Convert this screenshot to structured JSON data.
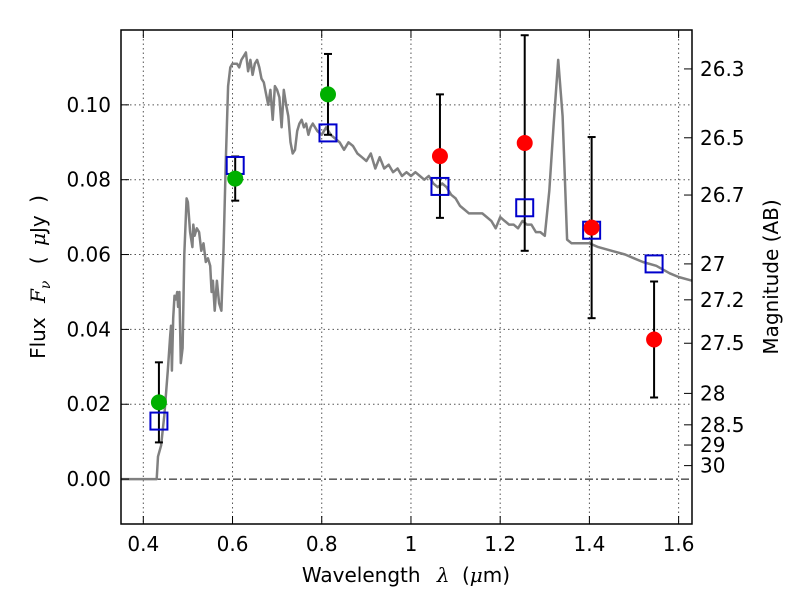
{
  "chart_data": {
    "type": "scatter",
    "xlabel_text": "Wavelength",
    "xlabel_symbol": "λ",
    "xlabel_unit_open": "(",
    "xlabel_unit_mu": "μ",
    "xlabel_unit_rest": "m)",
    "ylabel_text": "Flux",
    "ylabel_symbol": "F",
    "ylabel_subscript": "ν",
    "ylabel_unit_open": "(",
    "ylabel_unit_mu": "μ",
    "ylabel_unit_rest": "Jy",
    "ylabel_unit_close": ")",
    "y2label": "Magnitude (AB)",
    "xlim": [
      0.35,
      1.63
    ],
    "ylim": [
      -0.012,
      0.12
    ],
    "grid": true,
    "x_ticks": [
      0.4,
      0.6,
      0.8,
      1.0,
      1.2,
      1.4,
      1.6
    ],
    "x_tick_labels": [
      "0.4",
      "0.6",
      "0.8",
      "1",
      "1.2",
      "1.4",
      "1.6"
    ],
    "y_ticks": [
      0.0,
      0.02,
      0.04,
      0.06,
      0.08,
      0.1
    ],
    "y_tick_labels": [
      "0.00",
      "0.02",
      "0.04",
      "0.06",
      "0.08",
      "0.10"
    ],
    "y2_ticks": [
      {
        "label": "26.3",
        "flux": 0.1096
      },
      {
        "label": "26.5",
        "flux": 0.0912
      },
      {
        "label": "26.7",
        "flux": 0.0759
      },
      {
        "label": "27",
        "flux": 0.0575
      },
      {
        "label": "27.2",
        "flux": 0.0479
      },
      {
        "label": "27.5",
        "flux": 0.0363
      },
      {
        "label": "28",
        "flux": 0.0229
      },
      {
        "label": "28.5",
        "flux": 0.0145
      },
      {
        "label": "29",
        "flux": 0.0091
      },
      {
        "label": "30",
        "flux": 0.0036
      }
    ],
    "colors": {
      "model": "#808080",
      "photometry_green": "#00b000",
      "photometry_red": "#ff0000",
      "model_box": "#0000cc",
      "errorbar": "#000000",
      "grid": "#555555"
    },
    "model_spectrum": [
      [
        0.35,
        0.0
      ],
      [
        0.43,
        0.0
      ],
      [
        0.433,
        0.006
      ],
      [
        0.44,
        0.009
      ],
      [
        0.447,
        0.017
      ],
      [
        0.455,
        0.029
      ],
      [
        0.46,
        0.038
      ],
      [
        0.462,
        0.041
      ],
      [
        0.464,
        0.029
      ],
      [
        0.467,
        0.043
      ],
      [
        0.47,
        0.049
      ],
      [
        0.473,
        0.048
      ],
      [
        0.476,
        0.05
      ],
      [
        0.478,
        0.046
      ],
      [
        0.481,
        0.05
      ],
      [
        0.484,
        0.031
      ],
      [
        0.488,
        0.035
      ],
      [
        0.492,
        0.06
      ],
      [
        0.497,
        0.075
      ],
      [
        0.5,
        0.074
      ],
      [
        0.505,
        0.066
      ],
      [
        0.51,
        0.062
      ],
      [
        0.512,
        0.068
      ],
      [
        0.515,
        0.065
      ],
      [
        0.52,
        0.067
      ],
      [
        0.525,
        0.066
      ],
      [
        0.53,
        0.061
      ],
      [
        0.535,
        0.063
      ],
      [
        0.54,
        0.058
      ],
      [
        0.545,
        0.059
      ],
      [
        0.55,
        0.057
      ],
      [
        0.553,
        0.05
      ],
      [
        0.556,
        0.053
      ],
      [
        0.56,
        0.045
      ],
      [
        0.565,
        0.053
      ],
      [
        0.57,
        0.047
      ],
      [
        0.575,
        0.045
      ],
      [
        0.58,
        0.062
      ],
      [
        0.585,
        0.085
      ],
      [
        0.59,
        0.105
      ],
      [
        0.595,
        0.11
      ],
      [
        0.6,
        0.111
      ],
      [
        0.605,
        0.111
      ],
      [
        0.61,
        0.111
      ],
      [
        0.615,
        0.11
      ],
      [
        0.62,
        0.112
      ],
      [
        0.625,
        0.113
      ],
      [
        0.63,
        0.114
      ],
      [
        0.635,
        0.109
      ],
      [
        0.64,
        0.112
      ],
      [
        0.645,
        0.108
      ],
      [
        0.65,
        0.111
      ],
      [
        0.655,
        0.112
      ],
      [
        0.66,
        0.11
      ],
      [
        0.665,
        0.107
      ],
      [
        0.67,
        0.106
      ],
      [
        0.675,
        0.103
      ],
      [
        0.68,
        0.1
      ],
      [
        0.685,
        0.104
      ],
      [
        0.69,
        0.096
      ],
      [
        0.695,
        0.105
      ],
      [
        0.7,
        0.104
      ],
      [
        0.705,
        0.102
      ],
      [
        0.71,
        0.094
      ],
      [
        0.715,
        0.104
      ],
      [
        0.72,
        0.1
      ],
      [
        0.725,
        0.097
      ],
      [
        0.73,
        0.09
      ],
      [
        0.735,
        0.087
      ],
      [
        0.74,
        0.088
      ],
      [
        0.745,
        0.093
      ],
      [
        0.75,
        0.095
      ],
      [
        0.755,
        0.096
      ],
      [
        0.76,
        0.094
      ],
      [
        0.765,
        0.095
      ],
      [
        0.77,
        0.092
      ],
      [
        0.775,
        0.094
      ],
      [
        0.78,
        0.095
      ],
      [
        0.79,
        0.093
      ],
      [
        0.8,
        0.092
      ],
      [
        0.81,
        0.094
      ],
      [
        0.82,
        0.092
      ],
      [
        0.83,
        0.091
      ],
      [
        0.84,
        0.09
      ],
      [
        0.85,
        0.088
      ],
      [
        0.86,
        0.09
      ],
      [
        0.87,
        0.089
      ],
      [
        0.88,
        0.087
      ],
      [
        0.89,
        0.086
      ],
      [
        0.9,
        0.085
      ],
      [
        0.91,
        0.087
      ],
      [
        0.92,
        0.083
      ],
      [
        0.93,
        0.086
      ],
      [
        0.94,
        0.083
      ],
      [
        0.95,
        0.084
      ],
      [
        0.96,
        0.082
      ],
      [
        0.97,
        0.083
      ],
      [
        0.98,
        0.081
      ],
      [
        0.99,
        0.082
      ],
      [
        1.0,
        0.081
      ],
      [
        1.01,
        0.082
      ],
      [
        1.02,
        0.081
      ],
      [
        1.03,
        0.08
      ],
      [
        1.04,
        0.081
      ],
      [
        1.05,
        0.079
      ],
      [
        1.06,
        0.078
      ],
      [
        1.07,
        0.079
      ],
      [
        1.08,
        0.078
      ],
      [
        1.09,
        0.076
      ],
      [
        1.1,
        0.075
      ],
      [
        1.11,
        0.073
      ],
      [
        1.12,
        0.072
      ],
      [
        1.13,
        0.071
      ],
      [
        1.14,
        0.071
      ],
      [
        1.15,
        0.071
      ],
      [
        1.16,
        0.071
      ],
      [
        1.17,
        0.07
      ],
      [
        1.18,
        0.069
      ],
      [
        1.19,
        0.067
      ],
      [
        1.2,
        0.07
      ],
      [
        1.21,
        0.069
      ],
      [
        1.22,
        0.068
      ],
      [
        1.23,
        0.068
      ],
      [
        1.24,
        0.067
      ],
      [
        1.25,
        0.069
      ],
      [
        1.26,
        0.068
      ],
      [
        1.27,
        0.068
      ],
      [
        1.28,
        0.066
      ],
      [
        1.29,
        0.066
      ],
      [
        1.3,
        0.065
      ],
      [
        1.31,
        0.077
      ],
      [
        1.32,
        0.095
      ],
      [
        1.33,
        0.112
      ],
      [
        1.34,
        0.097
      ],
      [
        1.35,
        0.064
      ],
      [
        1.36,
        0.063
      ],
      [
        1.38,
        0.063
      ],
      [
        1.4,
        0.063
      ],
      [
        1.42,
        0.062
      ],
      [
        1.45,
        0.061
      ],
      [
        1.48,
        0.06
      ],
      [
        1.5,
        0.059
      ],
      [
        1.52,
        0.058
      ],
      [
        1.55,
        0.057
      ],
      [
        1.58,
        0.055
      ],
      [
        1.6,
        0.054
      ],
      [
        1.63,
        0.053
      ]
    ],
    "series": [
      {
        "marker": "circle-green",
        "points": [
          {
            "x": 0.435,
            "y": 0.0205,
            "yerr": 0.0107
          },
          {
            "x": 0.606,
            "y": 0.0803,
            "yerr": 0.0059
          },
          {
            "x": 0.814,
            "y": 0.1028,
            "yerr": 0.0108
          }
        ]
      },
      {
        "marker": "circle-red",
        "points": [
          {
            "x": 1.065,
            "y": 0.0863,
            "yerr": 0.0165
          },
          {
            "x": 1.255,
            "y": 0.0898,
            "yerr": 0.0288
          },
          {
            "x": 1.405,
            "y": 0.0672,
            "yerr": 0.0242
          },
          {
            "x": 1.545,
            "y": 0.0373,
            "yerr": 0.0155
          }
        ]
      },
      {
        "marker": "square-blue",
        "points": [
          {
            "x": 0.435,
            "y": 0.0155
          },
          {
            "x": 0.606,
            "y": 0.0838
          },
          {
            "x": 0.814,
            "y": 0.0925
          },
          {
            "x": 1.065,
            "y": 0.0782
          },
          {
            "x": 1.255,
            "y": 0.0725
          },
          {
            "x": 1.405,
            "y": 0.0665
          },
          {
            "x": 1.545,
            "y": 0.0575
          }
        ]
      }
    ]
  }
}
